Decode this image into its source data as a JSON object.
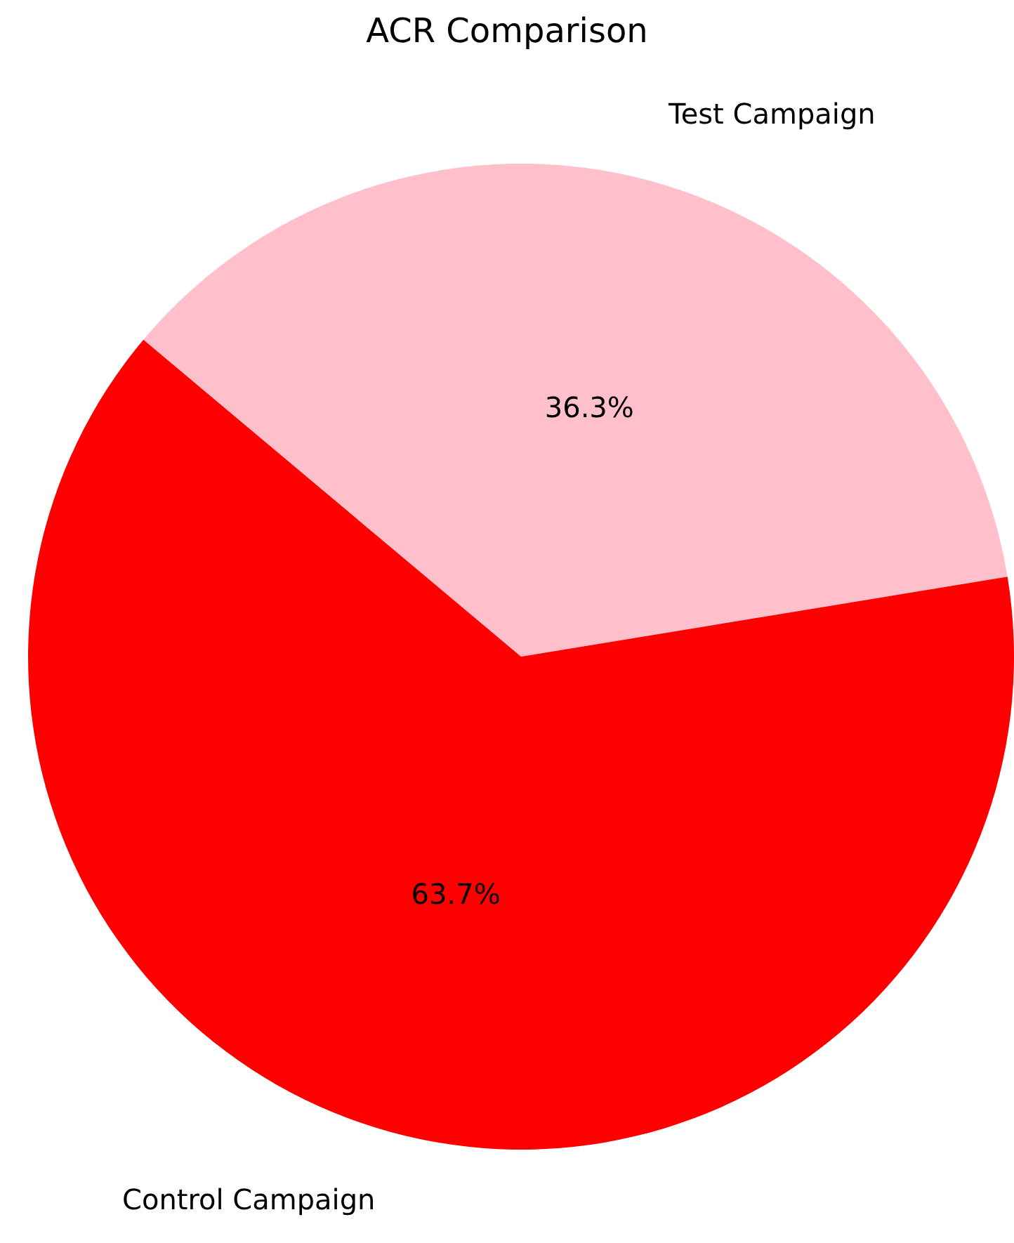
{
  "chart_data": {
    "type": "pie",
    "title": "ACR Comparison",
    "categories": [
      "Test Campaign",
      "Control Campaign"
    ],
    "values": [
      36.3,
      63.7
    ],
    "colors": [
      "#ffc0cb",
      "#ff0000"
    ],
    "value_labels": [
      "36.3%",
      "63.7%"
    ],
    "legend": false
  }
}
